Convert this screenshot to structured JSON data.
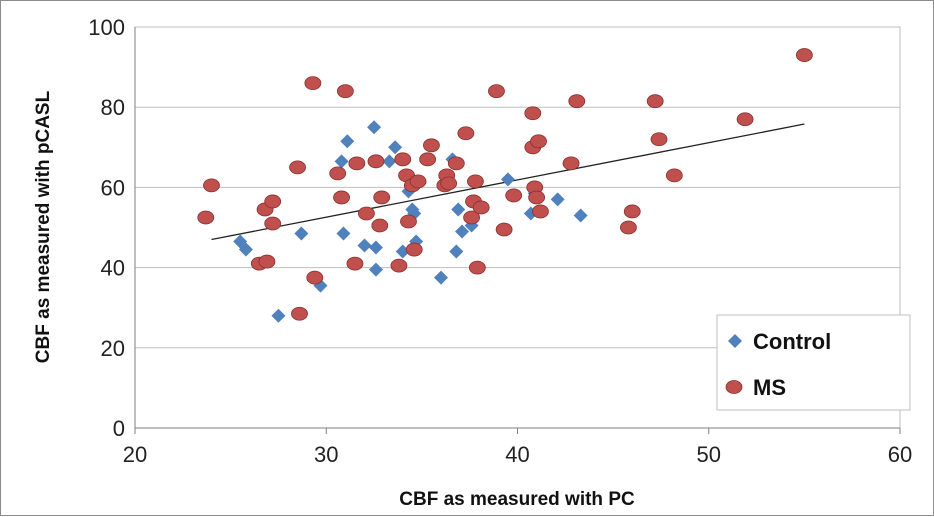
{
  "chart_data": {
    "type": "scatter",
    "xlabel": "CBF as measured with PC",
    "ylabel": "CBF as measured with pCASL",
    "xlim": [
      20,
      60
    ],
    "ylim": [
      0,
      100
    ],
    "xticks": [
      "20",
      "30",
      "40",
      "50",
      "60"
    ],
    "yticks": [
      "0",
      "20",
      "40",
      "60",
      "80",
      "100"
    ],
    "grid": "horizontal",
    "legend_position": "bottom-right",
    "series": [
      {
        "name": "Control",
        "marker": "diamond",
        "color": "#4f81bd",
        "points": [
          [
            25.5,
            46.5
          ],
          [
            25.8,
            44.5
          ],
          [
            27.5,
            28.0
          ],
          [
            28.7,
            48.5
          ],
          [
            29.7,
            35.5
          ],
          [
            30.8,
            66.5
          ],
          [
            30.9,
            48.5
          ],
          [
            31.1,
            71.5
          ],
          [
            32.0,
            45.5
          ],
          [
            32.5,
            75.0
          ],
          [
            32.6,
            45.0
          ],
          [
            32.6,
            39.5
          ],
          [
            33.3,
            66.5
          ],
          [
            33.6,
            70.0
          ],
          [
            34.0,
            44.0
          ],
          [
            34.3,
            59.0
          ],
          [
            34.5,
            54.5
          ],
          [
            34.6,
            53.5
          ],
          [
            34.7,
            46.5
          ],
          [
            36.0,
            37.5
          ],
          [
            36.6,
            67.0
          ],
          [
            36.8,
            44.0
          ],
          [
            36.9,
            54.5
          ],
          [
            37.1,
            49.0
          ],
          [
            37.6,
            50.5
          ],
          [
            39.5,
            62.0
          ],
          [
            40.7,
            53.5
          ],
          [
            40.9,
            58.5
          ],
          [
            42.1,
            57.0
          ],
          [
            43.3,
            53.0
          ]
        ]
      },
      {
        "name": "MS",
        "marker": "circle",
        "color": "#c0504d",
        "points": [
          [
            23.7,
            52.5
          ],
          [
            24.0,
            60.5
          ],
          [
            26.5,
            41.0
          ],
          [
            26.8,
            54.5
          ],
          [
            26.9,
            41.5
          ],
          [
            27.2,
            56.5
          ],
          [
            27.2,
            51.0
          ],
          [
            28.5,
            65.0
          ],
          [
            28.6,
            28.5
          ],
          [
            29.3,
            86.0
          ],
          [
            29.4,
            37.5
          ],
          [
            30.6,
            63.5
          ],
          [
            30.8,
            57.5
          ],
          [
            31.0,
            84.0
          ],
          [
            31.5,
            41.0
          ],
          [
            31.6,
            66.0
          ],
          [
            32.1,
            53.5
          ],
          [
            32.6,
            66.5
          ],
          [
            32.8,
            50.5
          ],
          [
            32.9,
            57.5
          ],
          [
            33.8,
            40.5
          ],
          [
            34.0,
            67.0
          ],
          [
            34.2,
            63.0
          ],
          [
            34.3,
            51.5
          ],
          [
            34.5,
            60.5
          ],
          [
            34.6,
            44.5
          ],
          [
            34.8,
            61.5
          ],
          [
            35.3,
            67.0
          ],
          [
            35.5,
            70.5
          ],
          [
            36.2,
            60.5
          ],
          [
            36.3,
            63.0
          ],
          [
            36.4,
            61.0
          ],
          [
            36.8,
            66.0
          ],
          [
            37.3,
            73.5
          ],
          [
            37.6,
            52.5
          ],
          [
            37.7,
            56.5
          ],
          [
            37.8,
            61.5
          ],
          [
            37.9,
            40.0
          ],
          [
            38.1,
            55.0
          ],
          [
            38.9,
            84.0
          ],
          [
            39.3,
            49.5
          ],
          [
            39.8,
            58.0
          ],
          [
            40.8,
            78.5
          ],
          [
            40.8,
            70.0
          ],
          [
            40.9,
            60.0
          ],
          [
            41.0,
            57.5
          ],
          [
            41.1,
            71.5
          ],
          [
            41.2,
            54.0
          ],
          [
            42.8,
            66.0
          ],
          [
            43.1,
            81.5
          ],
          [
            45.8,
            50.0
          ],
          [
            46.0,
            54.0
          ],
          [
            47.2,
            81.5
          ],
          [
            47.4,
            72.0
          ],
          [
            48.2,
            63.0
          ],
          [
            51.9,
            77.0
          ],
          [
            55.0,
            93.0
          ]
        ]
      }
    ],
    "trendline": {
      "x": [
        24,
        55
      ],
      "y": [
        47.0,
        75.8
      ],
      "color": "#222222"
    }
  }
}
